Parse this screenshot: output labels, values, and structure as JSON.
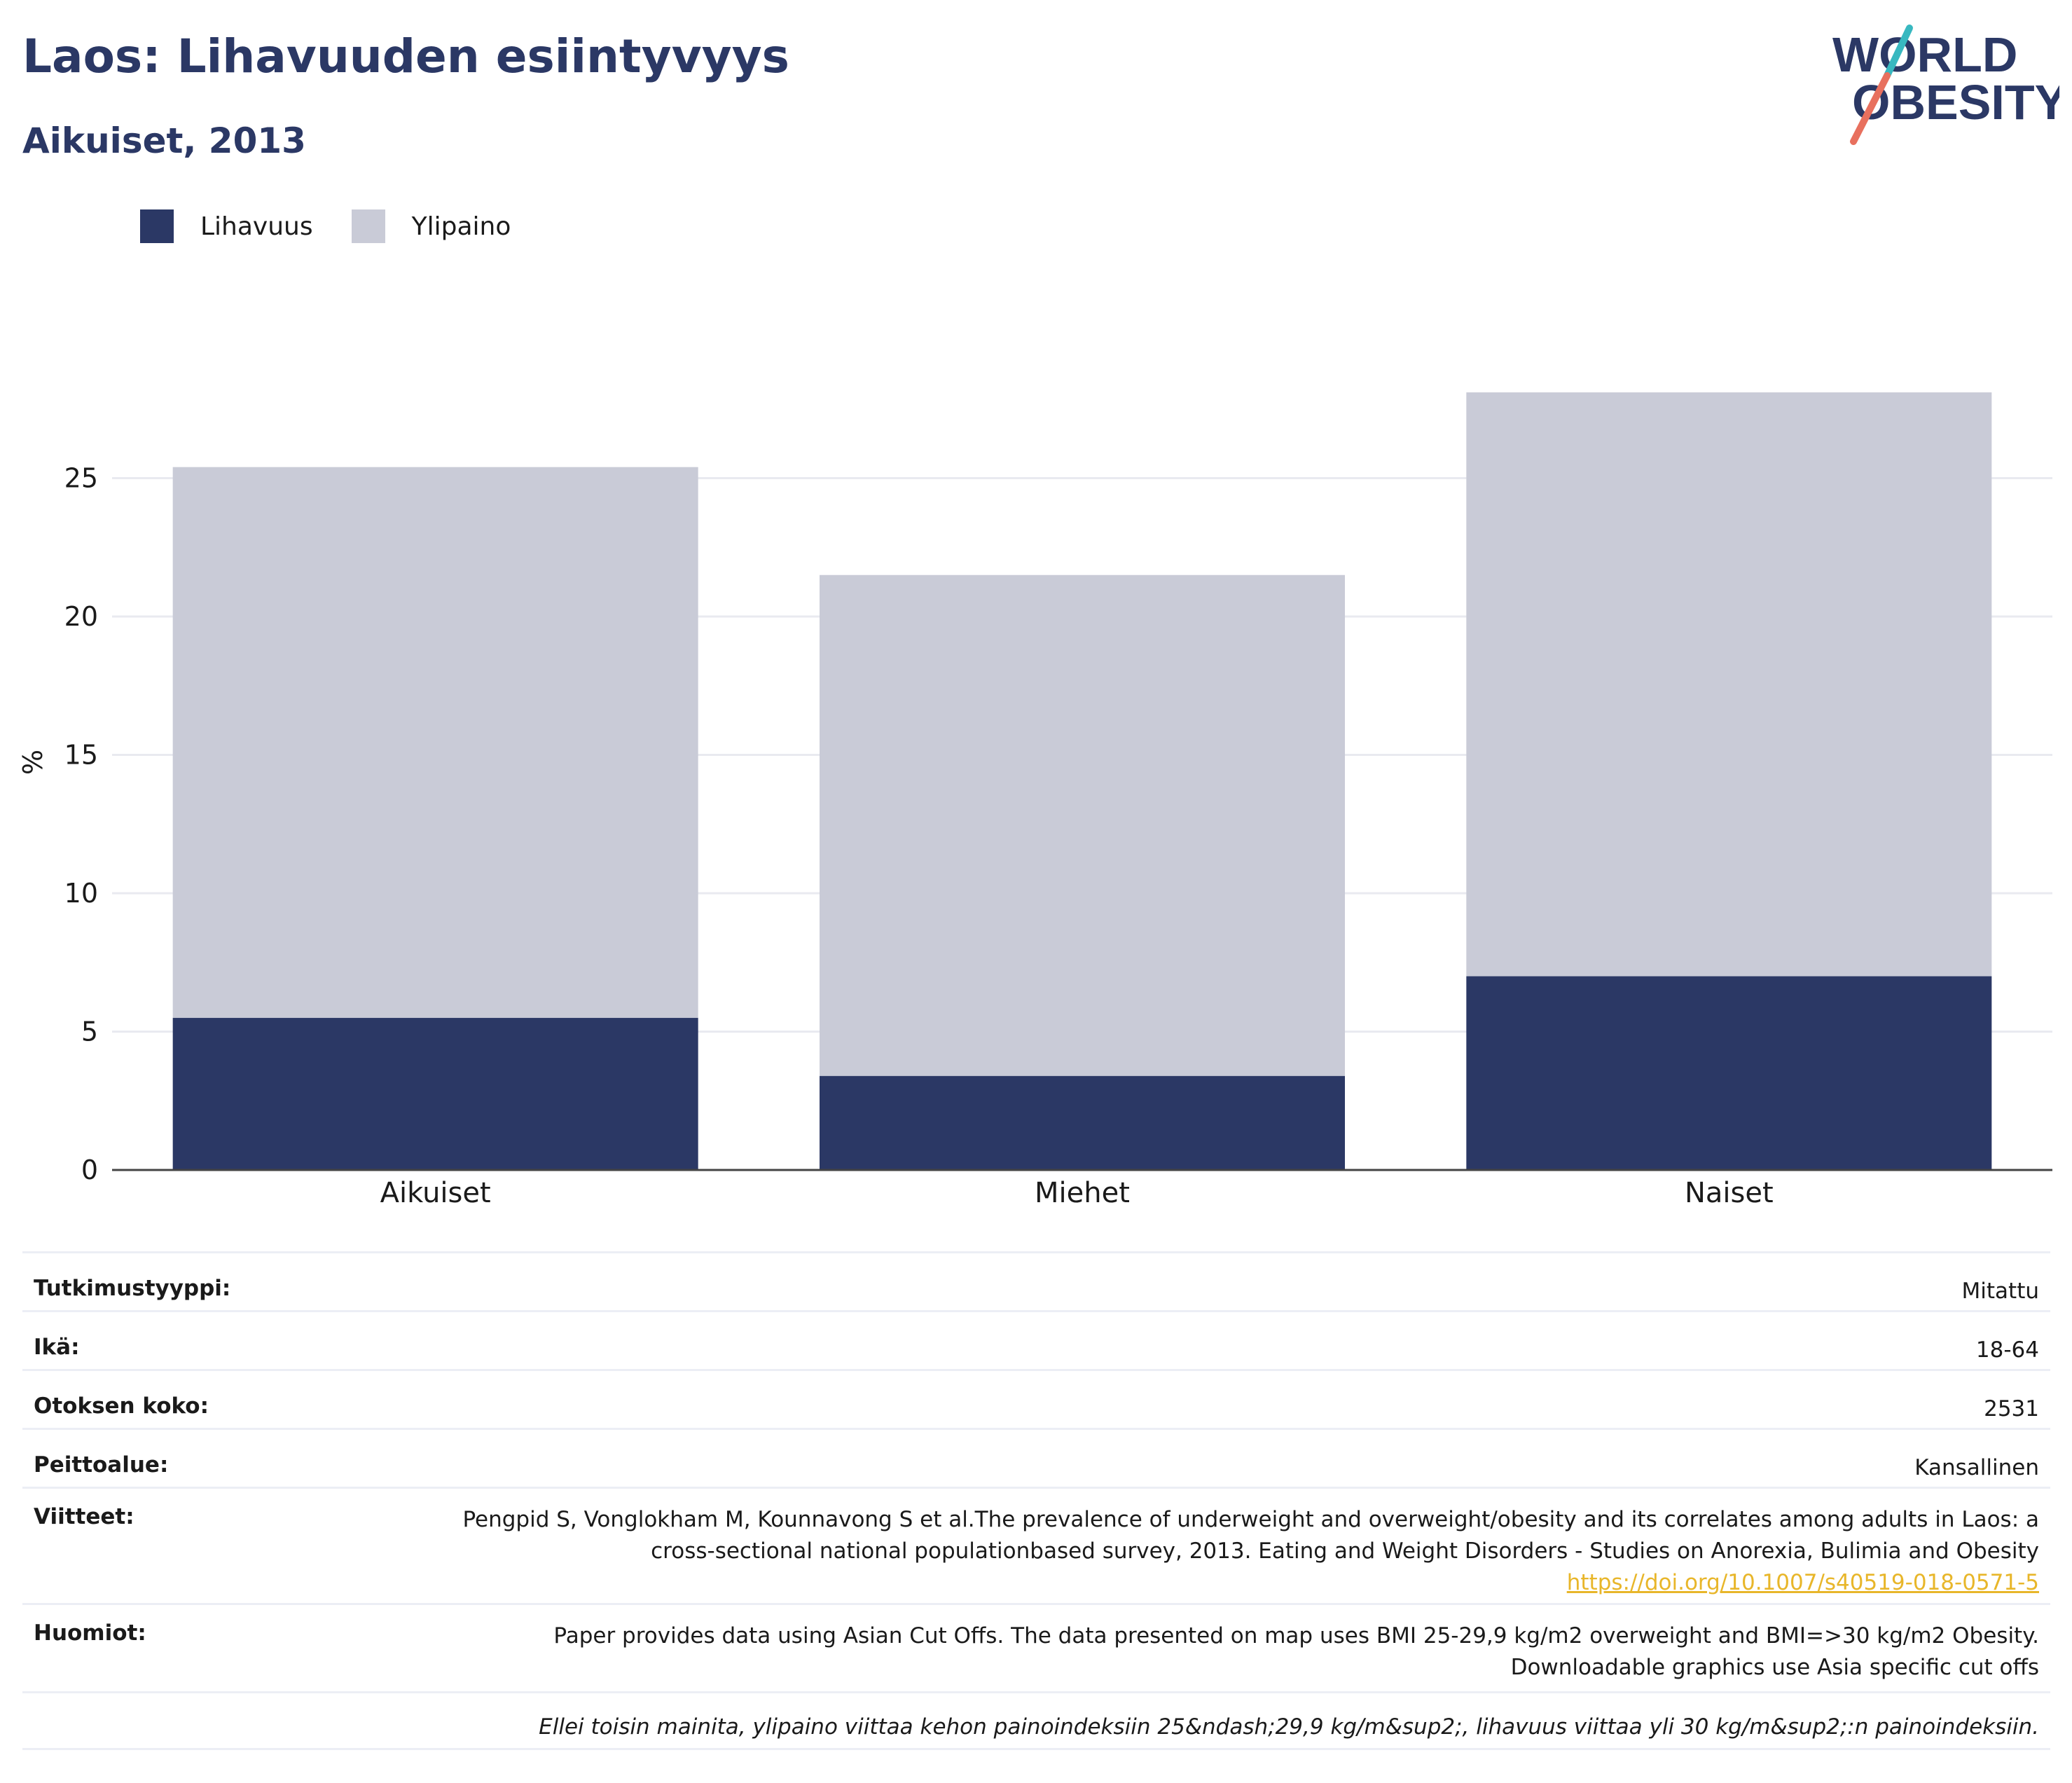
{
  "header": {
    "title": "Laos: Lihavuuden esiintyvyys",
    "subtitle": "Aikuiset, 2013",
    "logo_text_line1": "WORLD",
    "logo_text_line2": "OBESITY"
  },
  "legend": [
    {
      "label": "Lihavuus",
      "color": "#2b3865"
    },
    {
      "label": "Ylipaino",
      "color": "#c9cbd7"
    }
  ],
  "chart_data": {
    "type": "bar",
    "stacked": true,
    "categories": [
      "Aikuiset",
      "Miehet",
      "Naiset"
    ],
    "series": [
      {
        "name": "Lihavuus",
        "color": "#2b3865",
        "values": [
          5.5,
          3.4,
          7.0
        ]
      },
      {
        "name": "Ylipaino",
        "color": "#c9cbd7",
        "values": [
          19.9,
          18.1,
          21.1
        ]
      }
    ],
    "ylabel": "%",
    "ylim": [
      0,
      30
    ],
    "yticks": [
      0,
      5,
      10,
      15,
      20,
      25
    ],
    "grid": true,
    "legend_position": "top-left"
  },
  "info": {
    "rows": [
      {
        "key": "Tutkimustyyppi:",
        "value": "Mitattu"
      },
      {
        "key": "Ikä:",
        "value": "18-64"
      },
      {
        "key": "Otoksen koko:",
        "value": "2531"
      },
      {
        "key": "Peittoalue:",
        "value": "Kansallinen"
      }
    ],
    "references_key": "Viitteet:",
    "references_text": "Pengpid S, Vonglokham M, Kounnavong S et al.The prevalence of underweight and overweight/obesity and its correlates among adults in Laos: a cross-sectional national populationbased survey, 2013. Eating and Weight Disorders - Studies on Anorexia, Bulimia and Obesity",
    "references_link": "https://doi.org/10.1007/s40519-018-0571-5",
    "notes_key": "Huomiot:",
    "notes_text": "Paper provides data using Asian Cut Offs. The data presented on map uses BMI 25-29,9 kg/m2 overweight and BMI=>30 kg/m2 Obesity. Downloadable graphics use Asia specific cut offs",
    "footnote": "Ellei toisin mainita, ylipaino viittaa kehon painoindeksiin 25&ndash;29,9 kg/m&sup2;, lihavuus viittaa yli 30 kg/m&sup2;:n painoindeksiin."
  }
}
